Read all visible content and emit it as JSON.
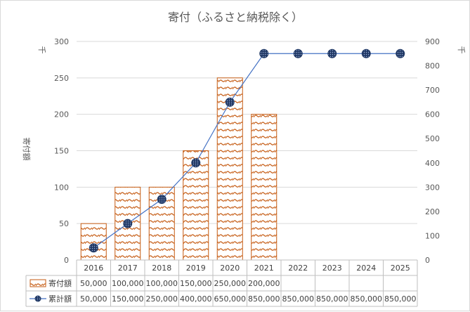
{
  "chart_data": {
    "type": "bar+line",
    "title": "寄付（ふるさと納税除く）",
    "categories": [
      "2016",
      "2017",
      "2018",
      "2019",
      "2020",
      "2021",
      "2022",
      "2023",
      "2024",
      "2025"
    ],
    "ylabel": "寄付額",
    "y_unit_left": "千",
    "y_unit_right": "千",
    "ylim_left": [
      0,
      300
    ],
    "yticks_left": [
      0,
      50,
      100,
      150,
      200,
      250,
      300
    ],
    "ylim_right": [
      0,
      900
    ],
    "yticks_right": [
      0,
      100,
      200,
      300,
      400,
      500,
      600,
      700,
      800,
      900
    ],
    "series": [
      {
        "name": "寄付額",
        "kind": "bar",
        "axis": "left",
        "color": "#c55a11",
        "values": [
          50,
          100,
          100,
          150,
          250,
          200,
          null,
          null,
          null,
          null
        ],
        "table_values": [
          "50,000",
          "100,000",
          "100,000",
          "150,000",
          "250,000",
          "200,000",
          "",
          "",
          "",
          ""
        ]
      },
      {
        "name": "累計額",
        "kind": "line",
        "axis": "right",
        "color": "#4472c4",
        "marker_color": "#203864",
        "values": [
          50,
          150,
          250,
          400,
          650,
          850,
          850,
          850,
          850,
          850
        ],
        "table_values": [
          "50,000",
          "150,000",
          "250,000",
          "400,000",
          "650,000",
          "850,000",
          "850,000",
          "850,000",
          "850,000",
          "850,000"
        ]
      }
    ]
  }
}
